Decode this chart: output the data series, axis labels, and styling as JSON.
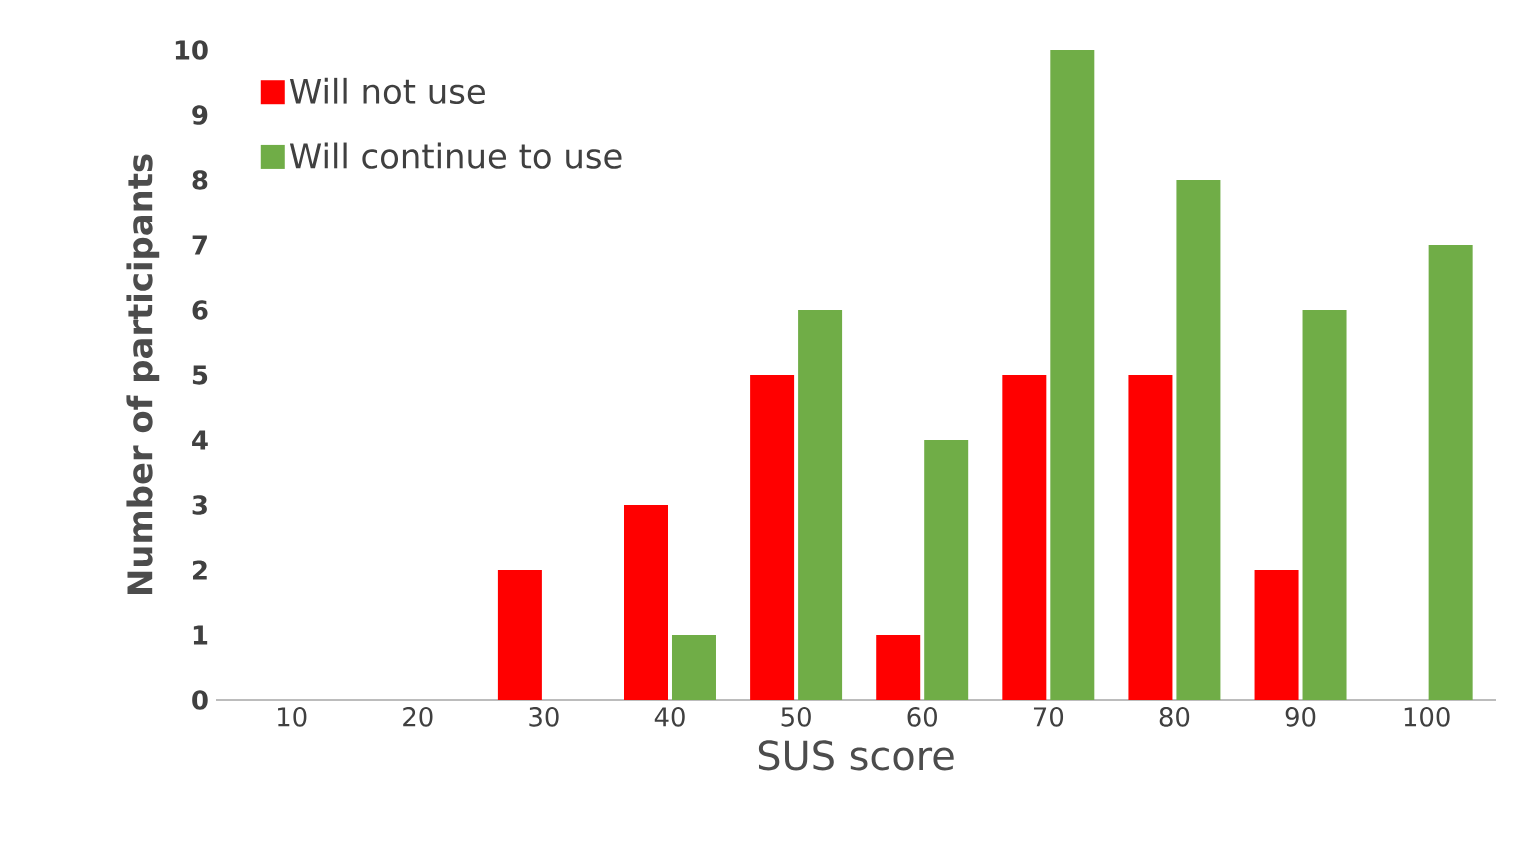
{
  "chart_data": {
    "type": "bar",
    "xlabel": "SUS score",
    "ylabel": "Number of participants",
    "categories": [
      "10",
      "20",
      "30",
      "40",
      "50",
      "60",
      "70",
      "80",
      "90",
      "100"
    ],
    "series": [
      {
        "name": "Will not use",
        "color": "#ff0000",
        "values": [
          0,
          0,
          2,
          3,
          5,
          1,
          5,
          5,
          2,
          0
        ]
      },
      {
        "name": "Will continue to use",
        "color": "#70ad47",
        "values": [
          0,
          0,
          0,
          1,
          6,
          4,
          10,
          8,
          6,
          7
        ]
      }
    ],
    "ylim": [
      0,
      10
    ],
    "yticks": [
      0,
      1,
      2,
      3,
      4,
      5,
      6,
      7,
      8,
      9,
      10
    ],
    "grid": false,
    "legend": "top left"
  }
}
